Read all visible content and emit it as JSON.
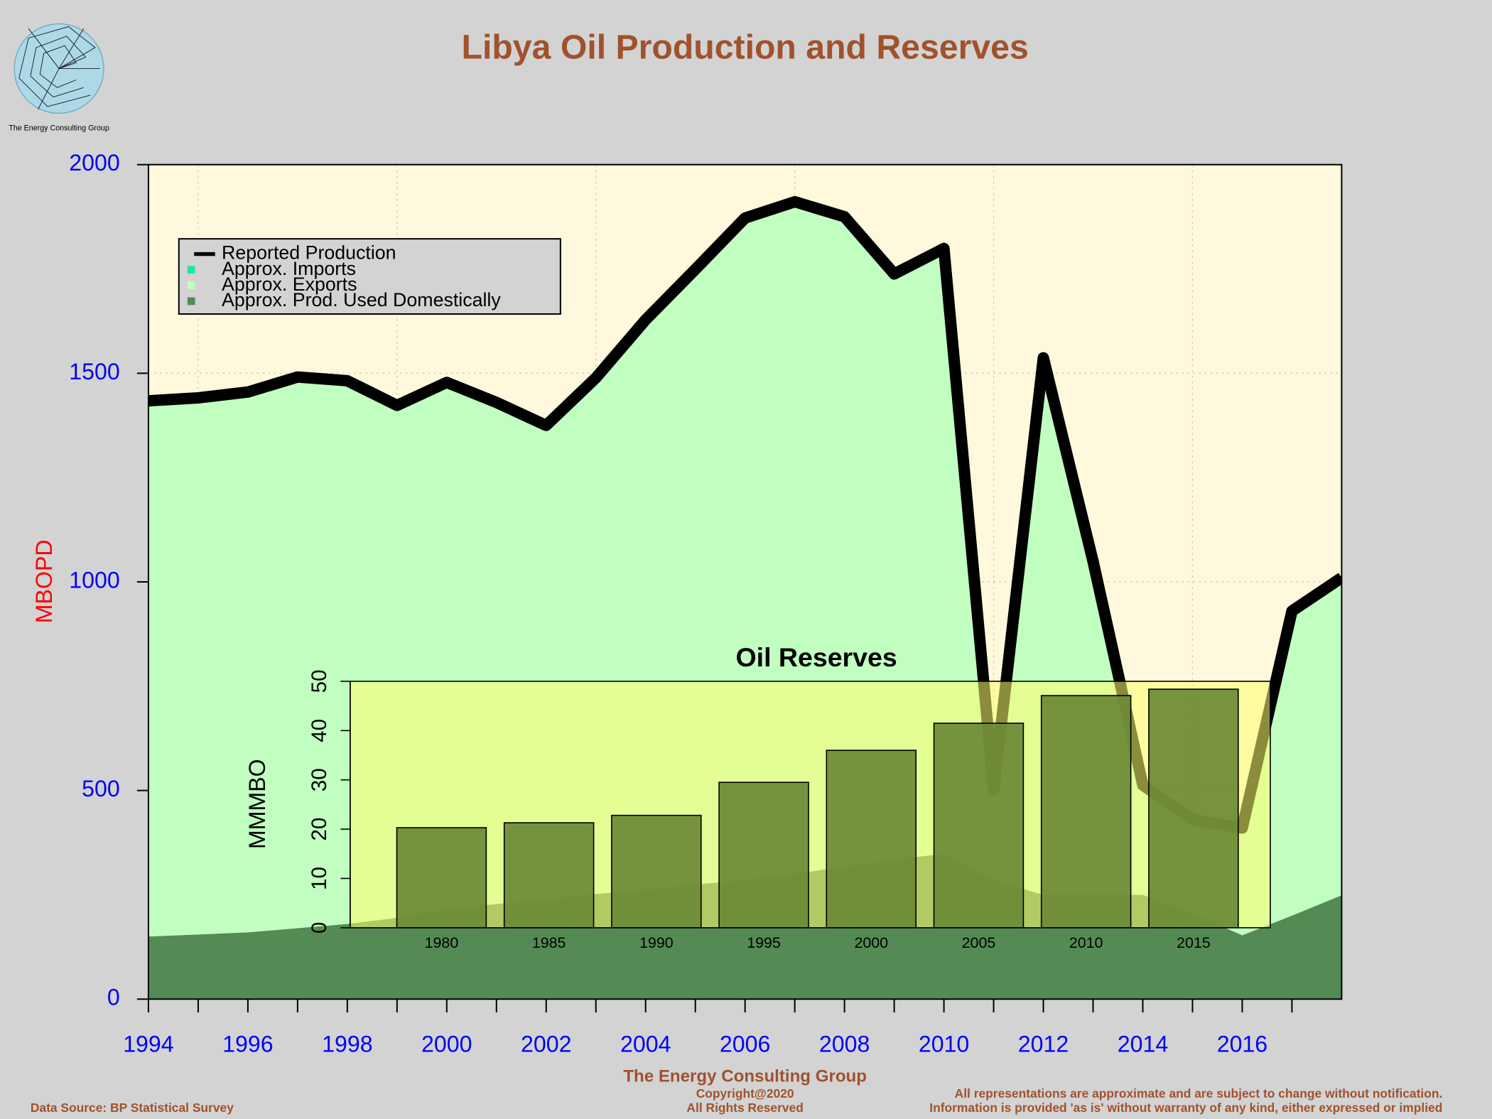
{
  "chart_data": [
    {
      "type": "area",
      "title": "Libya Oil Production and Reserves",
      "logo_text": "The Energy Consulting Group",
      "ylabel": "MBOPD",
      "x": [
        1994,
        1995,
        1996,
        1997,
        1998,
        1999,
        2000,
        2001,
        2002,
        2003,
        2004,
        2005,
        2006,
        2007,
        2008,
        2009,
        2010,
        2011,
        2012,
        2013,
        2014,
        2015,
        2016,
        2017,
        2018
      ],
      "series": [
        {
          "name": "Reported Production",
          "color": "#000000",
          "kind": "line",
          "values": [
            1434,
            1441,
            1455,
            1491,
            1482,
            1423,
            1478,
            1430,
            1375,
            1489,
            1628,
            1749,
            1872,
            1911,
            1875,
            1738,
            1799,
            500,
            1537,
            1049,
            513,
            430,
            410,
            930,
            1010
          ]
        },
        {
          "name": "Approx. Imports",
          "color": "#1ee8a0",
          "kind": "area",
          "values": [
            0,
            0,
            0,
            0,
            0,
            0,
            0,
            0,
            0,
            0,
            0,
            0,
            0,
            0,
            0,
            0,
            0,
            0,
            0,
            0,
            0,
            0,
            0,
            0,
            0
          ]
        },
        {
          "name": "Approx. Exports",
          "color": "#c1ffc1",
          "kind": "area",
          "values": [
            1284,
            1286,
            1295,
            1321,
            1302,
            1228,
            1263,
            1202,
            1135,
            1237,
            1366,
            1474,
            1587,
            1611,
            1557,
            1403,
            1451,
            215,
            1287,
            799,
            263,
            225,
            257,
            730,
            761
          ]
        },
        {
          "name": "Approx. Prod. Used Domestically",
          "color": "#548b54",
          "kind": "area",
          "values": [
            150,
            155,
            160,
            170,
            180,
            195,
            215,
            228,
            240,
            252,
            262,
            275,
            285,
            300,
            318,
            335,
            348,
            285,
            250,
            250,
            250,
            205,
            153,
            200,
            249
          ]
        }
      ],
      "xlim": [
        1994,
        2018
      ],
      "xticks": [
        1994,
        1996,
        1998,
        2000,
        2002,
        2004,
        2006,
        2008,
        2010,
        2012,
        2014,
        2016
      ],
      "xminorticks": [
        1995,
        1997,
        1999,
        2001,
        2003,
        2005,
        2007,
        2009,
        2011,
        2013,
        2015,
        2017
      ],
      "xgrid": [
        1995,
        1999,
        2003,
        2007,
        2011,
        2015
      ],
      "ylim": [
        0,
        2000
      ],
      "yticks": [
        0,
        500,
        1000,
        1500,
        2000
      ],
      "grid": true,
      "legend": "top-left",
      "footer": {
        "source": "Data Source: BP Statistical Survey",
        "company": "The Energy Consulting Group",
        "copyright": "Copyright@2020",
        "rights": "All Rights Reserved",
        "disclaimer1": "All representations are approximate and are subject to change without notification.",
        "disclaimer2": "Information is provided 'as is' without warranty of any kind, either expressed or implied"
      }
    },
    {
      "type": "bar",
      "title": "Oil Reserves",
      "ylabel": "MMMBO",
      "categories": [
        "1980",
        "1985",
        "1990",
        "1995",
        "2000",
        "2005",
        "2010",
        "2015"
      ],
      "values": [
        20.3,
        21.3,
        22.8,
        29.5,
        36,
        41.5,
        47.1,
        48.4
      ],
      "color": "#6b8a35",
      "ylim": [
        0,
        50
      ],
      "yticks": [
        0,
        10,
        20,
        30,
        40,
        50
      ]
    }
  ]
}
